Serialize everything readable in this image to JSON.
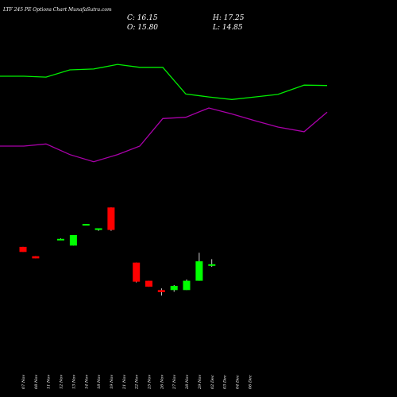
{
  "header": {
    "title": "LTF 245 PE Options  Chart MunafaSutra.com"
  },
  "ohlc": {
    "close": "C: 16.15",
    "high": "H: 17.25",
    "open": "O: 15.80",
    "low": "L: 14.85"
  },
  "colors": {
    "background": "#000000",
    "up": "#00ff00",
    "down": "#ff0000",
    "wick": "#ffffff",
    "upper_line": "#00ee00",
    "lower_line": "#aa00aa",
    "text": "#ffffff"
  },
  "chart_data": {
    "type": "candlestick",
    "x_ticks": [
      "07 Nov",
      "08 Nov",
      "11 Nov",
      "12 Nov",
      "13 Nov",
      "14 Nov",
      "18 Nov",
      "19 Nov",
      "21 Nov",
      "22 Nov",
      "25 Nov",
      "26 Nov",
      "27 Nov",
      "28 Nov",
      "29 Nov",
      "02 Dec",
      "03 Dec",
      "04 Dec",
      "06 Dec"
    ],
    "candles": [
      {
        "date": "07 Nov",
        "open": 24.2,
        "high": 24.2,
        "low": 23.0,
        "close": 23.0
      },
      {
        "date": "08 Nov",
        "open": 22.0,
        "high": 22.0,
        "low": 21.5,
        "close": 21.5
      },
      {
        "date": "12 Nov",
        "open": 26.0,
        "high": 26.2,
        "low": 26.0,
        "close": 26.1
      },
      {
        "date": "13 Nov",
        "open": 24.5,
        "high": 27.0,
        "low": 24.5,
        "close": 27.0
      },
      {
        "date": "14 Nov",
        "open": 29.5,
        "high": 29.6,
        "low": 29.5,
        "close": 29.6
      },
      {
        "date": "18 Nov",
        "open": 28.2,
        "high": 28.6,
        "low": 28.0,
        "close": 28.6
      },
      {
        "date": "19 Nov",
        "open": 33.5,
        "high": 33.5,
        "low": 28.0,
        "close": 28.2
      },
      {
        "date": "22 Nov",
        "open": 20.5,
        "high": 20.5,
        "low": 15.8,
        "close": 16.0
      },
      {
        "date": "25 Nov",
        "open": 16.2,
        "high": 16.2,
        "low": 14.8,
        "close": 14.8
      },
      {
        "date": "26 Nov",
        "open": 14.0,
        "high": 14.4,
        "low": 12.7,
        "close": 13.5
      },
      {
        "date": "27 Nov",
        "open": 14.0,
        "high": 15.2,
        "low": 13.6,
        "close": 15.0
      },
      {
        "date": "28 Nov",
        "open": 14.0,
        "high": 16.5,
        "low": 14.0,
        "close": 16.2
      },
      {
        "date": "29 Nov",
        "open": 16.2,
        "high": 22.8,
        "low": 16.2,
        "close": 20.8
      },
      {
        "date": "02 Dec",
        "open": 19.8,
        "high": 21.3,
        "low": 19.5,
        "close": 20.1
      }
    ],
    "bands": {
      "upper": [
        64.5,
        64.5,
        64.3,
        66.0,
        66.2,
        67.3,
        66.6,
        66.6,
        60.3,
        59.6,
        59.0,
        59.6,
        60.2,
        62.4,
        62.3
      ],
      "lower": [
        48.0,
        48.0,
        48.5,
        46.0,
        44.3,
        46.0,
        48.0,
        54.5,
        54.8,
        57.0,
        55.6,
        54.0,
        52.5,
        51.4,
        56.0
      ]
    },
    "ylim": [
      0,
      75
    ]
  }
}
